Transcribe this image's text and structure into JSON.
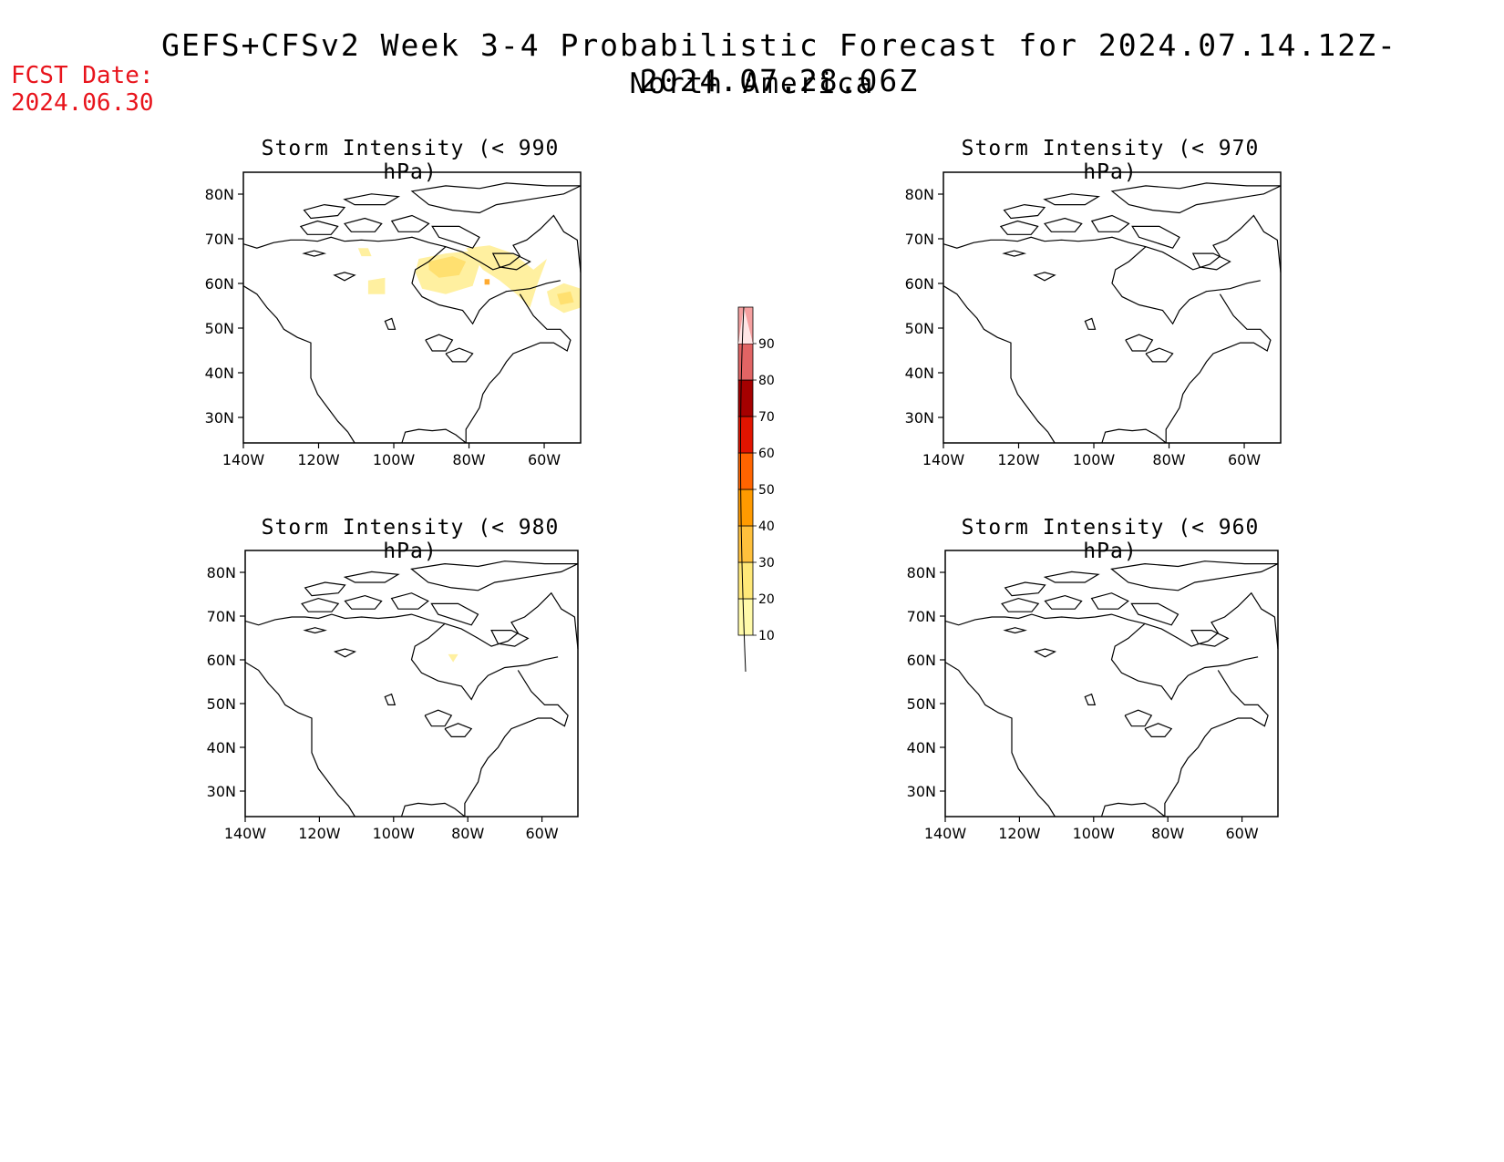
{
  "header": {
    "title": "GEFS+CFSv2 Week 3-4 Probabilistic Forecast for 2024.07.14.12Z-2024.07.28.06Z",
    "subtitle": "North America",
    "fcst_date_label": "FCST Date:",
    "fcst_date_value": "2024.06.30"
  },
  "panels": [
    {
      "title": "Storm Intensity (< 990 hPa)",
      "shading": "present"
    },
    {
      "title": "Storm Intensity (< 970 hPa)",
      "shading": "none"
    },
    {
      "title": "Storm Intensity (< 980 hPa)",
      "shading": "trace"
    },
    {
      "title": "Storm Intensity (< 960 hPa)",
      "shading": "none"
    }
  ],
  "axes": {
    "lon_ticks": [
      "140W",
      "120W",
      "100W",
      "80W",
      "60W"
    ],
    "lat_ticks": [
      "80N",
      "70N",
      "60N",
      "50N",
      "40N",
      "30N"
    ]
  },
  "colorbar": {
    "levels": [
      "10",
      "20",
      "30",
      "40",
      "50",
      "60",
      "70",
      "80",
      "90"
    ],
    "colors": [
      "#fffaaa",
      "#ffe878",
      "#ffc03c",
      "#ff9a00",
      "#ff6400",
      "#e11400",
      "#a50000",
      "#e16464",
      "#f5a0a0",
      "#ffe6e6"
    ]
  },
  "map_colors": {
    "low": "#fff0a0",
    "mid": "#ffe070",
    "high": "#ffaa30"
  }
}
